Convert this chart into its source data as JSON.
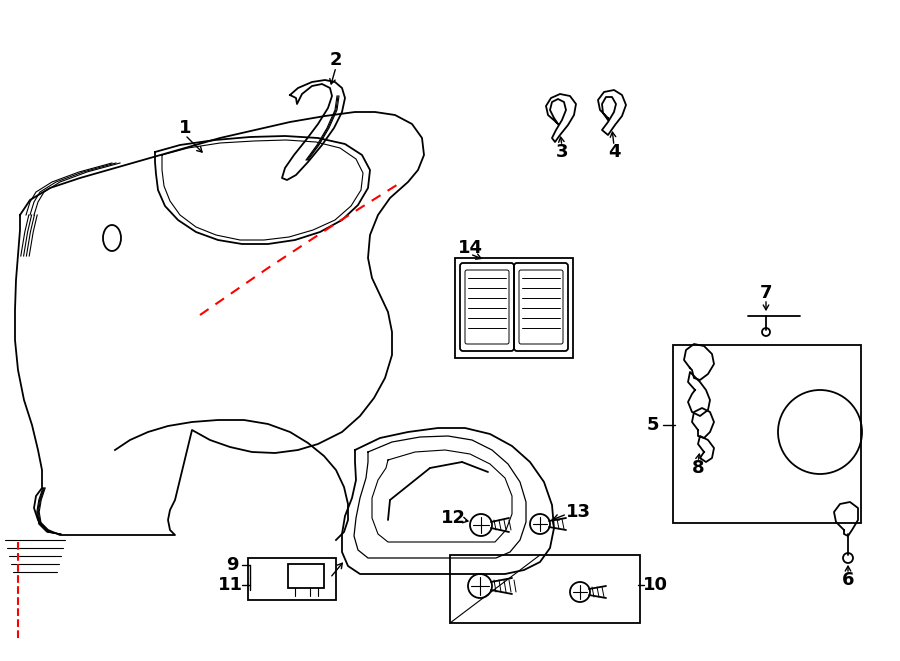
{
  "bg_color": "#ffffff",
  "line_color": "#000000",
  "red_color": "#ff0000",
  "lw_main": 1.3,
  "lw_thin": 0.8,
  "label_fs": 13
}
